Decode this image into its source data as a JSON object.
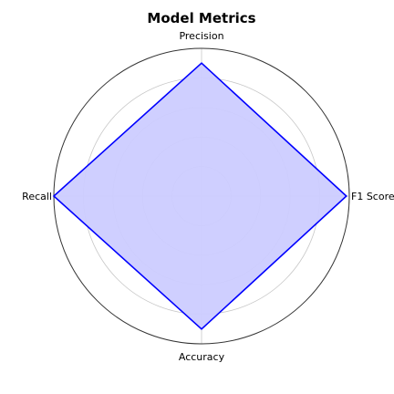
{
  "chart_data": {
    "type": "radar",
    "title": "Model Metrics",
    "categories": [
      "F1 Score",
      "Precision",
      "Recall",
      "Accuracy"
    ],
    "series": [
      {
        "values": [
          0.98,
          0.9,
          1.0,
          0.9
        ]
      }
    ],
    "rlim": [
      0,
      1
    ],
    "grid": true,
    "colors": {
      "line": "#0000ff",
      "fill": "#ccccff",
      "grid": "#c8c8c8",
      "frame": "#333333"
    }
  }
}
